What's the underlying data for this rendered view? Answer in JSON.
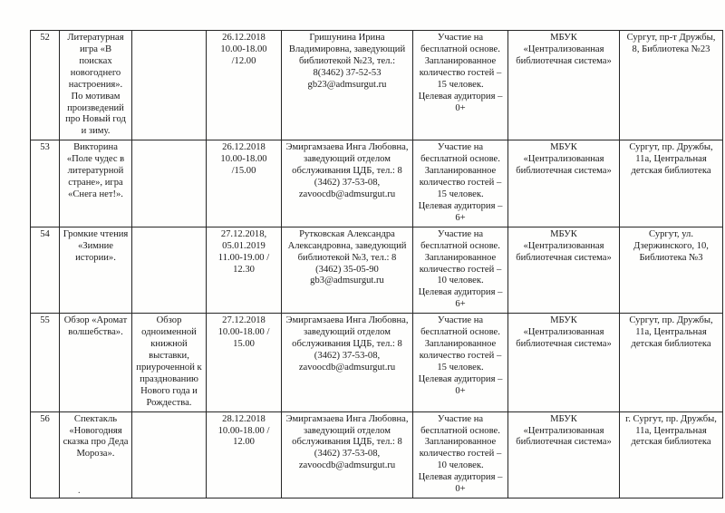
{
  "page": {
    "footer_mark": "."
  },
  "table": {
    "rows": [
      {
        "num": "52",
        "name": "Литературная игра «В поисках новогоднего настроения». По мотивам произведений про Новый год и зиму.",
        "description": "",
        "datetime": "26.12.2018 10.00-18.00 /12.00",
        "contact": "Гришунина Ирина Владимировна, заведующий библиотекой №23, тел.: 8(3462) 37-52-53\ngb23@admsurgut.ru",
        "participation": "Участие на бесплатной основе.\nЗапланированное количество гостей – 15 человек.\nЦелевая аудитория – 0+",
        "organizer": "МБУК «Централизованная библиотечная система»",
        "location": "Сургут, пр-т Дружбы, 8, Библиотека №23"
      },
      {
        "num": "53",
        "name": "Викторина «Поле чудес в литературной стране», игра «Снега нет!».",
        "description": "",
        "datetime": "26.12.2018 10.00-18.00 /15.00",
        "contact": "Эмиргамзаева Инга Любовна, заведующий отделом обслуживания ЦДБ, тел.: 8 (3462) 37-53-08,\nzavoocdb@admsurgut.ru",
        "participation": "Участие на бесплатной основе.\nЗапланированное количество гостей – 15 человек.\nЦелевая аудитория – 6+",
        "organizer": "МБУК «Централизованная библиотечная система»",
        "location": "Сургут, пр. Дружбы, 11а, Центральная детская библиотека"
      },
      {
        "num": "54",
        "name": "Громкие чтения «Зимние истории».",
        "description": "",
        "datetime": "27.12.2018,\n05.01.2019\n11.00-19.00 /\n12.30",
        "contact": "Рутковская Александра Александровна, заведующий библиотекой №3, тел.: 8 (3462) 35-05-90\ngb3@admsurgut.ru",
        "participation": "Участие на бесплатной основе.\nЗапланированное количество гостей – 10 человек.\nЦелевая аудитория – 6+",
        "organizer": "МБУК «Централизованная библиотечная система»",
        "location": "Сургут, ул. Дзержинского, 10, Библиотека №3"
      },
      {
        "num": "55",
        "name": "Обзор «Аромат волшебства».",
        "description": "Обзор одноименной книжной выставки, приуроченной к празднованию Нового года и Рождества.",
        "datetime": "27.12.2018 10.00-18.00 / 15.00",
        "contact": "Эмиргамзаева Инга Любовна, заведующий отделом обслуживания ЦДБ, тел.: 8 (3462) 37-53-08,\nzavoocdb@admsurgut.ru",
        "participation": "Участие на бесплатной основе.\nЗапланированное количество гостей – 15 человек.\nЦелевая аудитория – 0+",
        "organizer": "МБУК «Централизованная библиотечная система»",
        "location": "Сургут, пр. Дружбы, 11а, Центральная детская библиотека"
      },
      {
        "num": "56",
        "name": "Спектакль «Новогодняя сказка про Деда Мороза».",
        "description": "",
        "datetime": "28.12.2018 10.00-18.00 / 12.00",
        "contact": "Эмиргамзаева Инга Любовна, заведующий отделом обслуживания ЦДБ, тел.: 8 (3462) 37-53-08,\nzavoocdb@admsurgut.ru",
        "participation": "Участие на бесплатной основе.\nЗапланированное количество гостей – 10 человек.\nЦелевая аудитория – 0+",
        "organizer": "МБУК «Централизованная библиотечная система»",
        "location": "г. Сургут, пр. Дружбы, 11а, Центральная детская библиотека"
      }
    ]
  }
}
